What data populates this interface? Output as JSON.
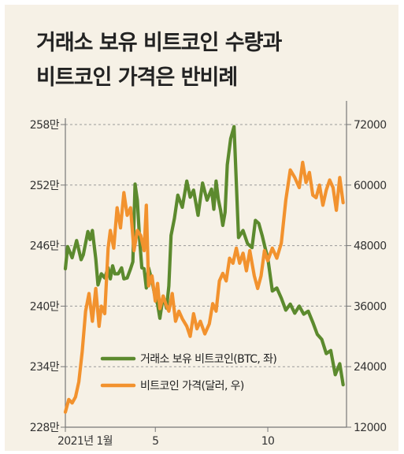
{
  "title_lines": [
    "거래소 보유 비트코인 수량과",
    "비트코인 가격은 반비례"
  ],
  "colors": {
    "background": "#f6f1e6",
    "btc_holdings": "#5c8a2e",
    "btc_price": "#f2922e",
    "axis": "#777777",
    "grid": "#9a9a9a"
  },
  "chart_data": {
    "type": "line",
    "title": "거래소 보유 비트코인 수량과 비트코인 가격은 반비례",
    "grid": "horizontal dashed",
    "legend_position": "bottom-center",
    "x_tick_labels": [
      "2021년 1월",
      "5",
      "10"
    ],
    "x_ticks_month": [
      1,
      5,
      10
    ],
    "x_range_month": [
      1,
      13.5
    ],
    "y_left": {
      "range": [
        2280000,
        2580000
      ],
      "ticks": [
        2280000,
        2340000,
        2400000,
        2460000,
        2520000,
        2580000
      ],
      "tick_labels": [
        "228만",
        "234만",
        "240만",
        "246만",
        "252만",
        "258만"
      ]
    },
    "y_right": {
      "range": [
        12000,
        72000
      ],
      "ticks": [
        12000,
        24000,
        36000,
        48000,
        60000,
        72000
      ],
      "tick_labels": [
        "12000",
        "24000",
        "36000",
        "48000",
        "60000",
        "72000"
      ]
    },
    "series": [
      {
        "name": "거래소 보유 비트코인(BTC, 좌)",
        "axis": "left",
        "x": [
          1.0,
          1.1,
          1.3,
          1.5,
          1.7,
          1.8,
          2.0,
          2.1,
          2.2,
          2.35,
          2.45,
          2.6,
          2.75,
          2.9,
          3.0,
          3.1,
          3.2,
          3.35,
          3.5,
          3.6,
          3.75,
          3.9,
          4.0,
          4.1,
          4.2,
          4.3,
          4.4,
          4.5,
          4.6,
          4.7,
          4.85,
          5.0,
          5.1,
          5.2,
          5.35,
          5.5,
          5.6,
          5.7,
          5.85,
          6.0,
          6.2,
          6.4,
          6.55,
          6.7,
          6.9,
          7.1,
          7.3,
          7.5,
          7.6,
          7.7,
          7.8,
          7.9,
          8.0,
          8.1,
          8.2,
          8.35,
          8.5,
          8.7,
          8.9,
          9.1,
          9.3,
          9.45,
          9.6,
          9.75,
          9.9,
          10.0,
          10.2,
          10.4,
          10.6,
          10.8,
          11.0,
          11.2,
          11.4,
          11.6,
          11.8,
          12.0,
          12.2,
          12.4,
          12.6,
          12.8,
          13.0,
          13.2,
          13.35
        ],
        "values": [
          2437000,
          2459000,
          2448000,
          2465000,
          2446000,
          2451000,
          2474000,
          2466000,
          2475000,
          2447000,
          2421000,
          2432000,
          2428000,
          2438000,
          2427000,
          2440000,
          2432000,
          2432000,
          2438000,
          2427000,
          2428000,
          2437000,
          2444000,
          2521000,
          2505000,
          2467000,
          2438000,
          2437000,
          2418000,
          2438000,
          2425000,
          2408000,
          2402000,
          2388000,
          2410000,
          2398000,
          2420000,
          2470000,
          2487000,
          2510000,
          2498000,
          2524000,
          2508000,
          2515000,
          2490000,
          2522000,
          2505000,
          2516000,
          2496000,
          2524000,
          2506000,
          2495000,
          2480000,
          2493000,
          2540000,
          2566000,
          2578000,
          2468000,
          2475000,
          2462000,
          2458000,
          2485000,
          2482000,
          2470000,
          2456000,
          2448000,
          2415000,
          2418000,
          2408000,
          2396000,
          2402000,
          2393000,
          2400000,
          2392000,
          2395000,
          2384000,
          2372000,
          2367000,
          2353000,
          2356000,
          2332000,
          2343000,
          2322000
        ]
      },
      {
        "name": "비트코인 가격(달러, 우)",
        "axis": "right",
        "x": [
          1.0,
          1.15,
          1.3,
          1.45,
          1.6,
          1.75,
          1.9,
          2.05,
          2.2,
          2.35,
          2.5,
          2.6,
          2.75,
          2.9,
          3.0,
          3.15,
          3.3,
          3.45,
          3.6,
          3.75,
          3.9,
          4.05,
          4.2,
          4.35,
          4.5,
          4.6,
          4.7,
          4.85,
          5.0,
          5.1,
          5.2,
          5.35,
          5.5,
          5.6,
          5.75,
          5.9,
          6.05,
          6.2,
          6.4,
          6.55,
          6.7,
          6.85,
          7.0,
          7.2,
          7.4,
          7.55,
          7.7,
          7.85,
          8.0,
          8.15,
          8.3,
          8.45,
          8.6,
          8.75,
          8.9,
          9.05,
          9.2,
          9.4,
          9.55,
          9.7,
          9.85,
          10.0,
          10.2,
          10.4,
          10.6,
          10.8,
          11.0,
          11.2,
          11.4,
          11.55,
          11.7,
          11.85,
          12.0,
          12.15,
          12.3,
          12.45,
          12.6,
          12.75,
          12.9,
          13.05,
          13.2,
          13.35
        ],
        "values": [
          15000,
          17500,
          16800,
          18000,
          21000,
          27000,
          35000,
          38500,
          33000,
          39500,
          32000,
          36000,
          34500,
          47500,
          51000,
          47500,
          55500,
          51500,
          58500,
          54000,
          55500,
          47000,
          51000,
          50000,
          47000,
          56000,
          40000,
          42000,
          37000,
          40500,
          35500,
          38000,
          36000,
          35000,
          38500,
          33000,
          35000,
          33500,
          32000,
          30000,
          34500,
          31500,
          33000,
          30500,
          32500,
          36500,
          35000,
          41000,
          42500,
          41000,
          45500,
          44500,
          47500,
          44500,
          46500,
          43000,
          47000,
          42000,
          39500,
          42000,
          47000,
          45000,
          47500,
          45500,
          48500,
          57000,
          63000,
          61500,
          59500,
          64500,
          60500,
          62500,
          58000,
          57500,
          60000,
          56000,
          59000,
          61000,
          59500,
          55000,
          61500,
          56500
        ]
      }
    ]
  }
}
